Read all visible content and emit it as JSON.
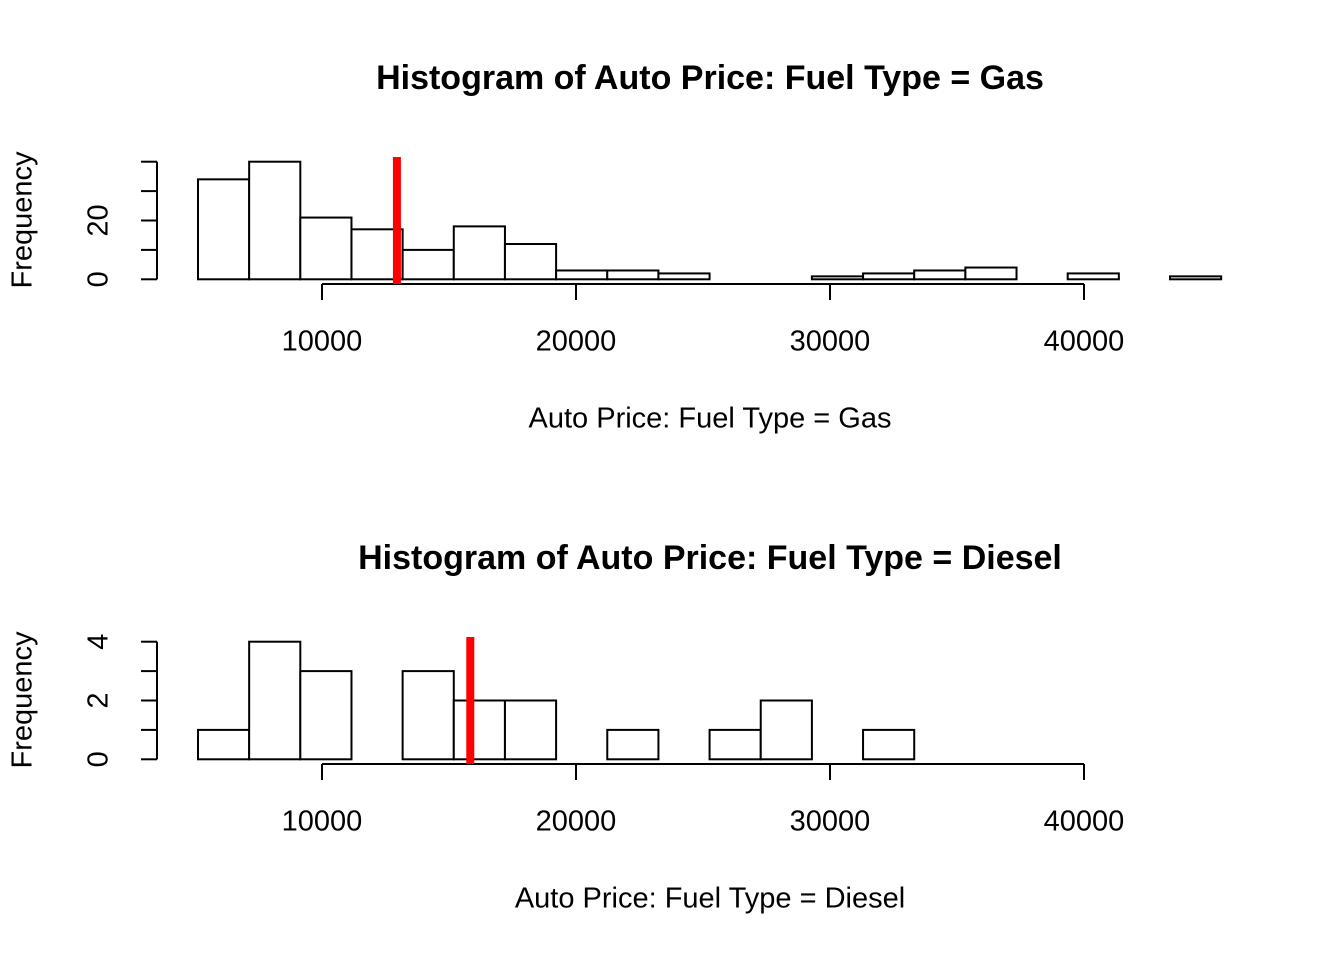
{
  "chart_data": [
    {
      "type": "histogram",
      "title": "Histogram of Auto Price: Fuel Type = Gas",
      "x_label": "Auto Price: Fuel Type = Gas",
      "y_label": "Frequency",
      "bins": [
        5118,
        7132.1,
        9146.2,
        11160.3,
        13174.4,
        15188.5,
        17202.6,
        19216.7,
        21230.8,
        23244.9,
        25259,
        27273.1,
        29287.2,
        31301.3,
        33315.4,
        35329.5,
        37343.6,
        39357.7,
        41371.8,
        43385.9,
        45400
      ],
      "values": [
        34,
        40,
        21,
        17,
        10,
        18,
        12,
        3,
        3,
        2,
        0,
        0,
        1,
        2,
        3,
        4,
        0,
        2,
        0,
        1
      ],
      "color": "#ffffff",
      "edge_color": "#000000",
      "vline": 12950,
      "vline_color": "#ff0000",
      "xlim": [
        3504,
        47047
      ],
      "xticks": [
        10000,
        20000,
        30000,
        40000
      ],
      "ylim": [
        -1.6,
        41.6
      ],
      "yticks": [
        0,
        {
          "value": 10,
          "label": null
        },
        20,
        {
          "value": 30,
          "label": null
        },
        {
          "value": 40,
          "label": null
        }
      ]
    },
    {
      "type": "histogram",
      "title": "Histogram of Auto Price: Fuel Type = Diesel",
      "x_label": "Auto Price: Fuel Type = Diesel",
      "y_label": "Frequency",
      "bins": [
        5118,
        7132.1,
        9146.2,
        11160.3,
        13174.4,
        15188.5,
        17202.6,
        19216.7,
        21230.8,
        23244.9,
        25259,
        27273.1,
        29287.2,
        31301.3,
        33315.4,
        35329.5,
        37343.6,
        39357.7,
        41371.8,
        43385.9,
        45400
      ],
      "values": [
        1,
        4,
        3,
        0,
        3,
        2,
        2,
        0,
        1,
        0,
        1,
        2,
        0,
        1,
        0,
        0,
        0,
        0,
        0,
        0
      ],
      "color": "#ffffff",
      "edge_color": "#000000",
      "vline": 15838,
      "vline_color": "#ff0000",
      "xlim": [
        3504,
        47047
      ],
      "xticks": [
        10000,
        20000,
        30000,
        40000
      ],
      "ylim": [
        -0.16,
        4.16
      ],
      "yticks": [
        0,
        {
          "value": 1,
          "label": null
        },
        2,
        {
          "value": 3,
          "label": null
        },
        4
      ]
    }
  ]
}
